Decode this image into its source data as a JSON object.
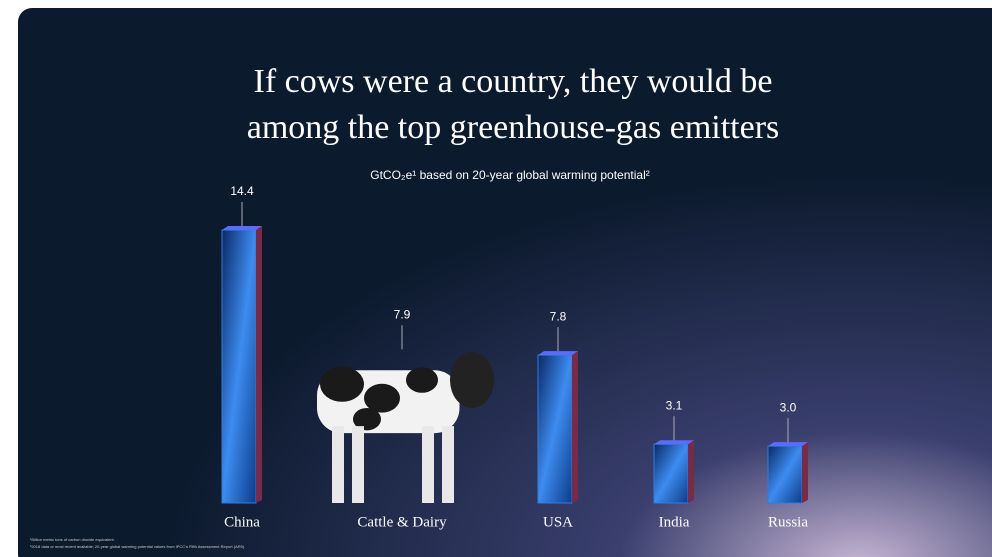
{
  "chart_data": {
    "type": "bar",
    "title": [
      "If cows were a country, they would be",
      "among the top greenhouse-gas emitters"
    ],
    "subtitle": "GtCO₂e¹ based on 20-year global warming potential²",
    "categories": [
      "China",
      "Cattle & Dairy",
      "USA",
      "India",
      "Russia"
    ],
    "values": [
      14.4,
      7.9,
      7.8,
      3.1,
      3.0
    ],
    "value_labels": [
      "14.4",
      "7.9",
      "7.8",
      "3.1",
      "3.0"
    ],
    "color": "#2f7be0",
    "footnotes": [
      "¹Billion metric tons of carbon dioxide equivalent.",
      "²2018 data or most recent available; 20-year global warming potential values from IPCC's Fifth Assessment Report (AR5)."
    ]
  }
}
